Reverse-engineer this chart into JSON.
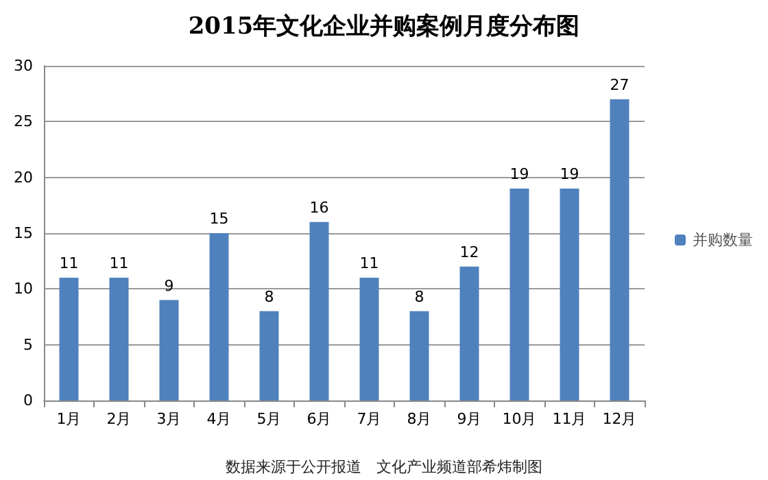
{
  "chart_data": {
    "type": "bar",
    "title": "2015年文化企业并购案例月度分布图",
    "categories": [
      "1月",
      "2月",
      "3月",
      "4月",
      "5月",
      "6月",
      "7月",
      "8月",
      "9月",
      "10月",
      "11月",
      "12月"
    ],
    "series": [
      {
        "name": "并购数量",
        "color": "#4f81bd",
        "values": [
          11,
          11,
          9,
          15,
          8,
          16,
          11,
          8,
          12,
          19,
          19,
          27
        ]
      }
    ],
    "ylim": [
      0,
      30
    ],
    "yticks": [
      0,
      5,
      10,
      15,
      20,
      25,
      30
    ],
    "grid": "y",
    "legend": "right",
    "data_labels": true,
    "annotations": [
      "数据来源于公开报道　文化产业频道部希炜制图"
    ]
  }
}
